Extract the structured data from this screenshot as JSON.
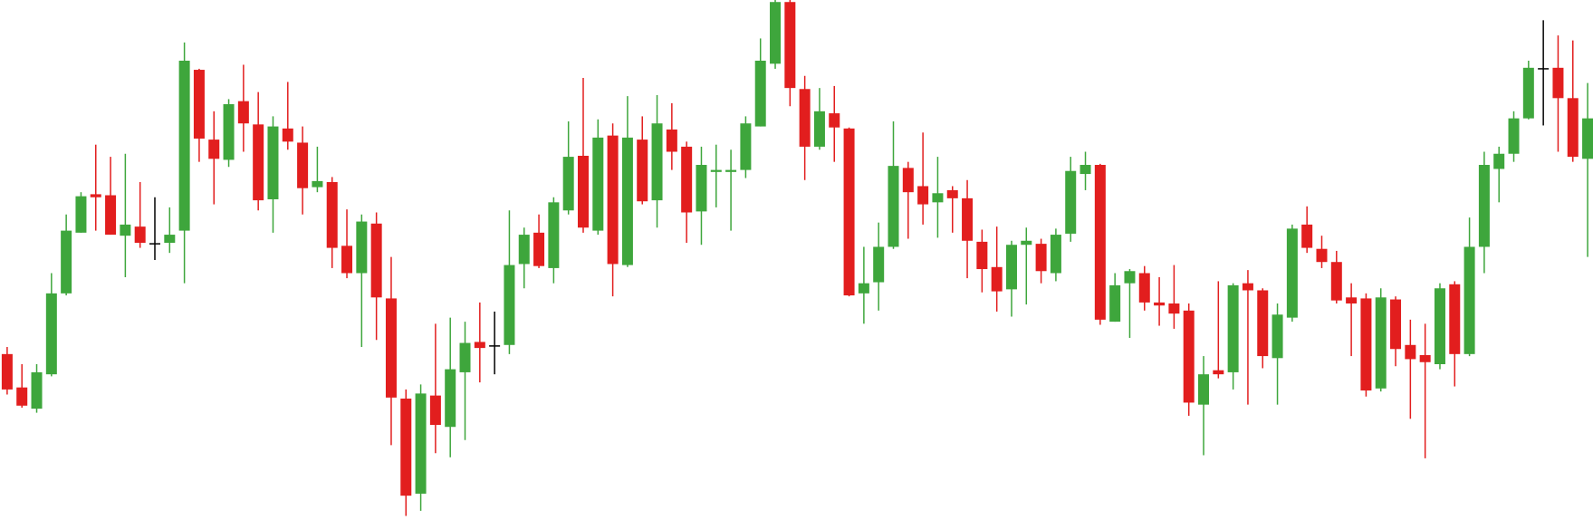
{
  "chart_data": {
    "type": "candlestick",
    "up_color": "#3ea63c",
    "down_color": "#e21e1e",
    "flat_color": "#000000",
    "open": [
      162,
      129,
      108,
      142,
      222,
      282,
      320,
      319,
      279,
      288,
      271,
      272,
      284,
      443,
      374,
      354,
      412,
      389,
      315,
      385,
      371,
      327,
      332,
      269,
      242,
      291,
      217,
      118,
      24,
      121,
      90,
      144,
      174,
      170,
      171,
      251,
      282,
      247,
      304,
      358,
      284,
      378,
      250,
      374,
      314,
      384,
      367,
      303,
      342,
      342,
      344,
      387,
      449,
      510,
      424,
      367,
      400,
      385,
      222,
      233,
      268,
      346,
      328,
      312,
      324,
      316,
      273,
      248,
      226,
      270,
      271,
      242,
      281,
      340,
      349,
      194,
      232,
      242,
      213,
      212,
      205,
      112,
      146,
      144,
      232,
      225,
      158,
      198,
      290,
      266,
      253,
      218,
      217,
      128,
      216,
      171,
      161,
      152,
      231,
      162,
      268,
      345,
      360,
      395,
      444,
      445,
      415,
      355
    ],
    "high": [
      169,
      152,
      152,
      242,
      300,
      322,
      369,
      357,
      360,
      332,
      317,
      307,
      470,
      444,
      402,
      414,
      448,
      421,
      397,
      431,
      387,
      367,
      337,
      305,
      300,
      302,
      258,
      127,
      132,
      192,
      198,
      194,
      213,
      204,
      304,
      287,
      300,
      317,
      392,
      435,
      394,
      390,
      417,
      397,
      418,
      410,
      372,
      367,
      369,
      364,
      397,
      474,
      512,
      512,
      437,
      425,
      427,
      386,
      268,
      292,
      392,
      352,
      381,
      357,
      328,
      334,
      285,
      288,
      274,
      287,
      276,
      286,
      357,
      362,
      350,
      242,
      246,
      249,
      238,
      250,
      212,
      160,
      234,
      232,
      245,
      227,
      212,
      290,
      308,
      279,
      264,
      232,
      222,
      227,
      219,
      196,
      192,
      232,
      234,
      297,
      362,
      367,
      402,
      452,
      492,
      477,
      472,
      430
    ],
    "low": [
      122,
      109,
      104,
      140,
      220,
      282,
      284,
      280,
      238,
      267,
      255,
      262,
      232,
      352,
      310,
      347,
      362,
      304,
      282,
      364,
      300,
      322,
      247,
      237,
      169,
      176,
      72,
      2,
      7,
      64,
      60,
      77,
      134,
      142,
      162,
      227,
      247,
      232,
      300,
      282,
      280,
      219,
      248,
      310,
      287,
      344,
      272,
      270,
      307,
      284,
      336,
      387,
      444,
      407,
      334,
      364,
      352,
      219,
      192,
      205,
      266,
      276,
      290,
      277,
      282,
      237,
      223,
      204,
      199,
      211,
      232,
      234,
      273,
      324,
      191,
      194,
      178,
      205,
      190,
      187,
      101,
      62,
      138,
      127,
      112,
      148,
      112,
      194,
      262,
      247,
      212,
      160,
      120,
      125,
      150,
      98,
      59,
      147,
      130,
      160,
      242,
      312,
      352,
      394,
      388,
      362,
      352,
      258
    ],
    "close": [
      127,
      111,
      144,
      222,
      284,
      318,
      317,
      280,
      290,
      272,
      271,
      280,
      452,
      375,
      355,
      409,
      390,
      314,
      387,
      372,
      326,
      333,
      267,
      242,
      293,
      218,
      119,
      22,
      123,
      92,
      147,
      173,
      168,
      170,
      250,
      280,
      249,
      312,
      357,
      287,
      376,
      251,
      376,
      313,
      390,
      362,
      302,
      349,
      344,
      344,
      390,
      452,
      510,
      425,
      367,
      402,
      386,
      220,
      232,
      268,
      348,
      322,
      310,
      321,
      316,
      274,
      246,
      224,
      270,
      274,
      244,
      280,
      343,
      349,
      196,
      230,
      244,
      213,
      210,
      202,
      114,
      142,
      142,
      230,
      225,
      160,
      201,
      286,
      267,
      253,
      215,
      212,
      126,
      218,
      167,
      157,
      154,
      227,
      162,
      268,
      349,
      360,
      395,
      445,
      444,
      415,
      357,
      395
    ]
  }
}
